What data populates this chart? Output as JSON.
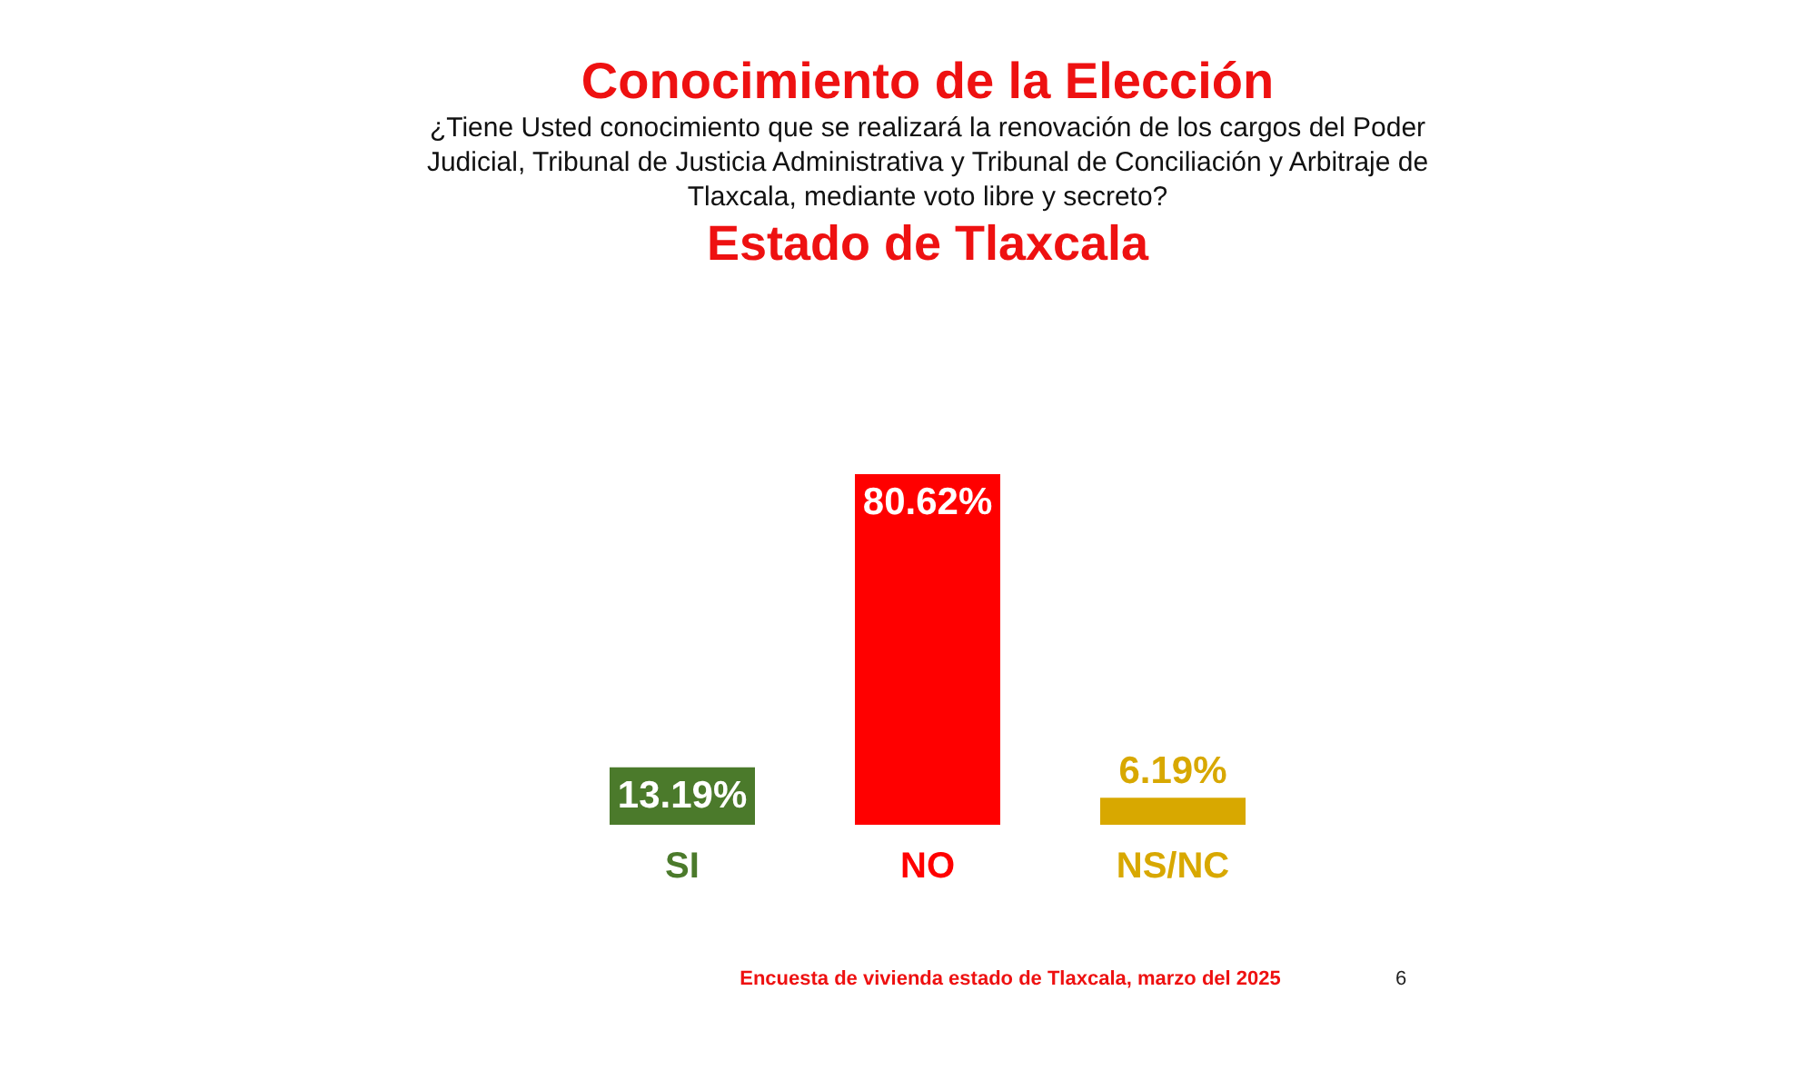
{
  "chart_data": {
    "type": "bar",
    "title": "Conocimiento de la Elección",
    "subtitle": "¿Tiene Usted conocimiento que se realizará la renovación de los cargos del Poder Judicial, Tribunal de Justicia Administrativa y Tribunal de Conciliación y Arbitraje de Tlaxcala, mediante voto libre y secreto?",
    "categories": [
      "SI",
      "NO",
      "NS/NC"
    ],
    "values": [
      13.19,
      80.62,
      6.19
    ],
    "value_labels": [
      "13.19%",
      "80.62%",
      "6.19%"
    ],
    "colors": [
      "#4b7a2b",
      "#ff0000",
      "#d8a800"
    ],
    "tick_labels": "x",
    "annotations": [
      "Estado de Tlaxcala",
      "Encuesta de vivienda estado de Tlaxcala, marzo del 2025",
      "6"
    ]
  }
}
